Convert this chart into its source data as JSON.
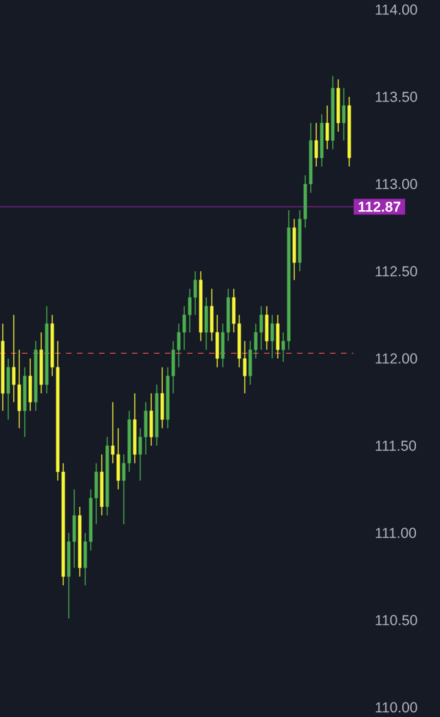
{
  "chart_data": {
    "type": "candlestick",
    "categories": [
      null,
      null,
      null,
      null,
      null,
      null,
      null,
      null,
      null,
      null,
      null,
      null,
      null,
      null,
      null,
      null,
      null,
      null,
      null,
      null,
      null,
      null,
      null,
      null,
      null,
      null,
      null,
      null,
      null,
      null,
      null,
      null,
      null,
      null,
      null,
      null,
      null,
      null,
      null,
      null,
      null,
      null,
      null,
      null,
      null,
      null,
      null,
      null,
      null,
      null,
      null,
      null,
      null,
      null,
      null,
      null,
      null,
      null,
      null,
      null,
      null,
      null,
      null,
      null
    ],
    "ohlc": [
      [
        112.1,
        112.2,
        111.7,
        111.8
      ],
      [
        111.8,
        112.0,
        111.65,
        111.95
      ],
      [
        111.95,
        112.25,
        111.75,
        111.85
      ],
      [
        111.85,
        112.05,
        111.6,
        111.7
      ],
      [
        111.7,
        111.95,
        111.55,
        111.9
      ],
      [
        111.9,
        112.0,
        111.7,
        111.75
      ],
      [
        111.75,
        112.1,
        111.7,
        112.05
      ],
      [
        112.05,
        112.15,
        111.8,
        111.85
      ],
      [
        111.85,
        112.3,
        111.8,
        112.2
      ],
      [
        112.2,
        112.25,
        111.9,
        111.95
      ],
      [
        111.95,
        112.1,
        111.3,
        111.35
      ],
      [
        111.35,
        111.4,
        110.7,
        110.75
      ],
      [
        110.75,
        111.0,
        110.51,
        110.95
      ],
      [
        110.95,
        111.25,
        110.8,
        111.1
      ],
      [
        111.1,
        111.15,
        110.75,
        110.8
      ],
      [
        110.8,
        111.0,
        110.7,
        110.95
      ],
      [
        110.95,
        111.25,
        110.9,
        111.2
      ],
      [
        111.2,
        111.4,
        111.05,
        111.35
      ],
      [
        111.35,
        111.45,
        111.1,
        111.15
      ],
      [
        111.15,
        111.55,
        111.1,
        111.5
      ],
      [
        111.5,
        111.75,
        111.4,
        111.45
      ],
      [
        111.45,
        111.6,
        111.25,
        111.3
      ],
      [
        111.3,
        111.45,
        111.05,
        111.4
      ],
      [
        111.4,
        111.7,
        111.35,
        111.65
      ],
      [
        111.65,
        111.8,
        111.4,
        111.45
      ],
      [
        111.45,
        111.6,
        111.3,
        111.55
      ],
      [
        111.55,
        111.75,
        111.45,
        111.7
      ],
      [
        111.7,
        111.8,
        111.5,
        111.55
      ],
      [
        111.55,
        111.85,
        111.5,
        111.8
      ],
      [
        111.8,
        111.95,
        111.6,
        111.65
      ],
      [
        111.65,
        111.95,
        111.6,
        111.9
      ],
      [
        111.9,
        112.1,
        111.8,
        112.05
      ],
      [
        112.05,
        112.2,
        111.95,
        112.15
      ],
      [
        112.15,
        112.3,
        112.05,
        112.25
      ],
      [
        112.25,
        112.4,
        112.15,
        112.35
      ],
      [
        112.35,
        112.5,
        112.25,
        112.45
      ],
      [
        112.45,
        112.5,
        112.1,
        112.15
      ],
      [
        112.15,
        112.35,
        112.05,
        112.3
      ],
      [
        112.3,
        112.4,
        112.1,
        112.15
      ],
      [
        112.15,
        112.25,
        111.95,
        112.0
      ],
      [
        112.0,
        112.2,
        111.95,
        112.15
      ],
      [
        112.15,
        112.4,
        112.1,
        112.35
      ],
      [
        112.35,
        112.4,
        112.15,
        112.2
      ],
      [
        112.2,
        112.25,
        111.95,
        112.0
      ],
      [
        112.0,
        112.1,
        111.8,
        111.9
      ],
      [
        111.9,
        112.1,
        111.85,
        112.05
      ],
      [
        112.05,
        112.2,
        112.0,
        112.15
      ],
      [
        112.15,
        112.3,
        112.05,
        112.25
      ],
      [
        112.25,
        112.3,
        112.05,
        112.1
      ],
      [
        112.1,
        112.25,
        112.0,
        112.2
      ],
      [
        112.2,
        112.25,
        112.0,
        112.05
      ],
      [
        112.05,
        112.15,
        111.98,
        112.1
      ],
      [
        112.1,
        112.85,
        112.05,
        112.75
      ],
      [
        112.75,
        112.8,
        112.45,
        112.55
      ],
      [
        112.55,
        112.85,
        112.5,
        112.8
      ],
      [
        112.8,
        113.05,
        112.75,
        113.0
      ],
      [
        113.0,
        113.35,
        112.95,
        113.25
      ],
      [
        113.25,
        113.35,
        113.1,
        113.15
      ],
      [
        113.15,
        113.4,
        113.1,
        113.35
      ],
      [
        113.35,
        113.45,
        113.2,
        113.25
      ],
      [
        113.25,
        113.62,
        113.2,
        113.55
      ],
      [
        113.55,
        113.6,
        113.3,
        113.35
      ],
      [
        113.35,
        113.55,
        113.25,
        113.45
      ],
      [
        113.45,
        113.5,
        113.1,
        113.15
      ]
    ],
    "colors": [
      "#f5f53a",
      "#4caf50",
      "#f5f53a",
      "#f5f53a",
      "#4caf50",
      "#f5f53a",
      "#4caf50",
      "#f5f53a",
      "#4caf50",
      "#f5f53a",
      "#f5f53a",
      "#f5f53a",
      "#4caf50",
      "#4caf50",
      "#f5f53a",
      "#4caf50",
      "#4caf50",
      "#4caf50",
      "#f5f53a",
      "#4caf50",
      "#f5f53a",
      "#f5f53a",
      "#4caf50",
      "#4caf50",
      "#f5f53a",
      "#4caf50",
      "#4caf50",
      "#f5f53a",
      "#4caf50",
      "#f5f53a",
      "#4caf50",
      "#4caf50",
      "#4caf50",
      "#4caf50",
      "#4caf50",
      "#4caf50",
      "#f5f53a",
      "#4caf50",
      "#f5f53a",
      "#f5f53a",
      "#4caf50",
      "#4caf50",
      "#f5f53a",
      "#f5f53a",
      "#f5f53a",
      "#4caf50",
      "#4caf50",
      "#4caf50",
      "#f5f53a",
      "#4caf50",
      "#f5f53a",
      "#4caf50",
      "#4caf50",
      "#f5f53a",
      "#4caf50",
      "#4caf50",
      "#4caf50",
      "#f5f53a",
      "#4caf50",
      "#f5f53a",
      "#4caf50",
      "#f5f53a",
      "#4caf50",
      "#f5f53a"
    ],
    "ylim": [
      110,
      114
    ],
    "yticks": [
      {
        "value": 110,
        "label": "110.00"
      },
      {
        "value": 110.5,
        "label": "110.50"
      },
      {
        "value": 111,
        "label": "111.00"
      },
      {
        "value": 111.5,
        "label": "111.50"
      },
      {
        "value": 112,
        "label": "112.00"
      },
      {
        "value": 112.5,
        "label": "112.50"
      },
      {
        "value": 113,
        "label": "113.00"
      },
      {
        "value": 113.5,
        "label": "113.50"
      },
      {
        "value": 114,
        "label": "114.00"
      }
    ],
    "tick_labels": "y",
    "grid": false,
    "ref_lines": [
      {
        "axis": "y",
        "value": 112.87,
        "label": "112.87",
        "color": "#9c27b0",
        "line_style": "solid"
      },
      {
        "axis": "y",
        "value": 112.03,
        "color": "#ef5350",
        "line_style": "dashed"
      }
    ]
  }
}
